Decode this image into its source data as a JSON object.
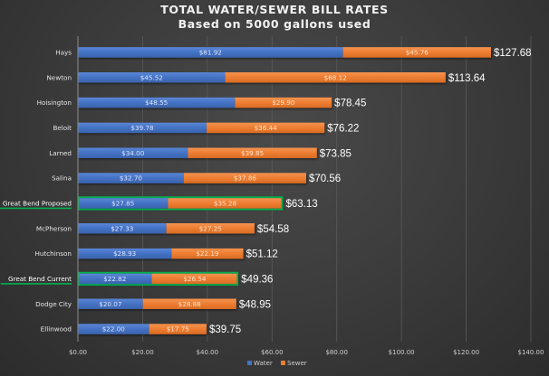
{
  "chart_data": {
    "type": "bar",
    "orientation": "horizontal",
    "stacked": true,
    "title": "TOTAL WATER/SEWER BILL RATES",
    "subtitle": "Based on 5000 gallons used",
    "xlabel": "",
    "ylabel": "",
    "xlim": [
      0,
      140
    ],
    "x_ticks": [
      0,
      20,
      40,
      60,
      80,
      100,
      120,
      140
    ],
    "x_tick_labels": [
      "$0.00",
      "$20.00",
      "$40.00",
      "$60.00",
      "$80.00",
      "$100.00",
      "$120.00",
      "$140.00"
    ],
    "grid": "vertical",
    "legend_position": "bottom",
    "categories": [
      "Hays",
      "Newton",
      "Hoisington",
      "Beloit",
      "Larned",
      "Salina",
      "Great Bend Proposed",
      "McPherson",
      "Hutchinson",
      "Great Bend Current",
      "Dodge City",
      "Ellinwood"
    ],
    "highlighted": [
      "Great Bend Proposed",
      "Great Bend Current"
    ],
    "series": [
      {
        "name": "Water",
        "color": "#4472c4",
        "values": [
          81.92,
          45.52,
          48.55,
          39.78,
          34.0,
          32.7,
          27.85,
          27.33,
          28.93,
          22.82,
          20.07,
          22.0
        ],
        "labels": [
          "$81.92",
          "$45.52",
          "$48.55",
          "$39.78",
          "$34.00",
          "$32.70",
          "$27.85",
          "$27.33",
          "$28.93",
          "$22.82",
          "$20.07",
          "$22.00"
        ]
      },
      {
        "name": "Sewer",
        "color": "#ed7d31",
        "values": [
          45.76,
          68.12,
          29.9,
          36.44,
          39.85,
          37.86,
          35.28,
          27.25,
          22.19,
          26.54,
          28.88,
          17.75
        ],
        "labels": [
          "$45.76",
          "$68.12",
          "$29.90",
          "$36.44",
          "$39.85",
          "$37.86",
          "$35.28",
          "$27.25",
          "$22.19",
          "$26.54",
          "$28.88",
          "$17.75"
        ]
      }
    ],
    "totals": [
      127.68,
      113.64,
      78.45,
      76.22,
      73.85,
      70.56,
      63.13,
      54.58,
      51.12,
      49.36,
      48.95,
      39.75
    ],
    "total_labels": [
      "$127.68",
      "$113.64",
      "$78.45",
      "$76.22",
      "$73.85",
      "$70.56",
      "$63.13",
      "$54.58",
      "$51.12",
      "$49.36",
      "$48.95",
      "$39.75"
    ],
    "highlight_color": "#00b050"
  }
}
